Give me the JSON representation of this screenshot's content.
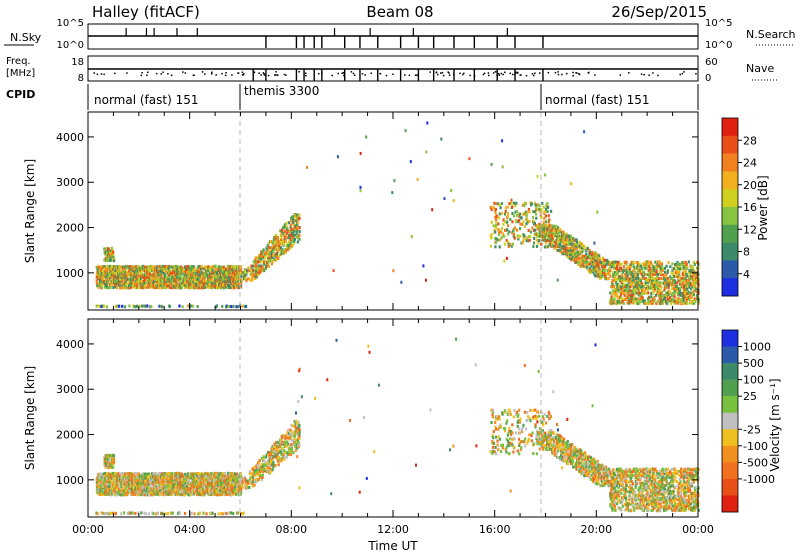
{
  "header": {
    "left": "Halley (fitACF)",
    "center": "Beam 08",
    "right": "26/Sep/2015"
  },
  "strips": {
    "nsky_label": "N.Sky",
    "nsky_ticks": [
      "10^5",
      "10^0"
    ],
    "nsearch_label": "N.Search",
    "nsearch_ticks": [
      "10^5",
      "10^0"
    ],
    "freq_label_1": "Freq.",
    "freq_label_2": "[MHz]",
    "freq_ticks": [
      "18",
      "8"
    ],
    "nave_label": "Nave",
    "nave_ticks": [
      "60",
      "0"
    ],
    "cpid_label": "CPID",
    "modes": [
      {
        "label": "normal (fast) 151",
        "start": 0
      },
      {
        "label": "themis 3300",
        "start": 6
      },
      {
        "label": "normal (fast) 151",
        "start": 18
      }
    ]
  },
  "chart_data": [
    {
      "type": "heatmap",
      "quantity": "Power",
      "ylabel": "Slant Range [km]",
      "xlabel": "",
      "xlim": [
        0,
        24
      ],
      "ylim": [
        180,
        4550
      ],
      "yticks": [
        "1000",
        "2000",
        "3000",
        "4000"
      ],
      "colorbar": {
        "label": "Power [dB]",
        "ticks": [
          "4",
          "8",
          "12",
          "16",
          "20",
          "24",
          "28"
        ],
        "colors": [
          "#1d2fe0",
          "#2a5aa8",
          "#3d8a6a",
          "#50a050",
          "#88c440",
          "#d0d020",
          "#f0b020",
          "#f08020",
          "#e85018",
          "#e02010"
        ]
      }
    },
    {
      "type": "heatmap",
      "quantity": "Velocity",
      "ylabel": "Slant Range [km]",
      "xlabel": "Time UT",
      "xlim": [
        0,
        24
      ],
      "ylim": [
        180,
        4550
      ],
      "yticks": [
        "1000",
        "2000",
        "3000",
        "4000"
      ],
      "xticks": [
        "00:00",
        "04:00",
        "08:00",
        "12:00",
        "16:00",
        "20:00",
        "00:00"
      ],
      "colorbar": {
        "label": "Velocity [m s⁻¹]",
        "ticks": [
          "1000",
          "500",
          "100",
          "25",
          "-25",
          "-100",
          "-500",
          "-1000"
        ],
        "colors": [
          "#1d2fe0",
          "#2a5aa8",
          "#3d8a6a",
          "#50a050",
          "#78c040",
          "#c0c0c0",
          "#f0c020",
          "#f09020",
          "#f07020",
          "#e85018",
          "#e02010"
        ]
      }
    }
  ],
  "scatter_regions": [
    {
      "t0": 0.3,
      "t1": 6.0,
      "r0": 700,
      "r1": 1200,
      "dens": 0.65
    },
    {
      "t0": 0.6,
      "t1": 1.0,
      "r0": 1300,
      "r1": 1600,
      "dens": 0.55
    },
    {
      "t0": 6.0,
      "t1": 8.3,
      "r0": 850,
      "r1": 2350,
      "dens": 0.35
    },
    {
      "t0": 0.2,
      "t1": 6.2,
      "r0": 280,
      "r1": 330,
      "dens": 0.25
    },
    {
      "t0": 15.8,
      "t1": 18.2,
      "r0": 1600,
      "r1": 2600,
      "dens": 0.12
    },
    {
      "t0": 17.6,
      "t1": 20.5,
      "r0": 900,
      "r1": 2100,
      "dens": 0.45
    },
    {
      "t0": 20.5,
      "t1": 24.0,
      "r0": 350,
      "r1": 1300,
      "dens": 0.35
    }
  ],
  "markers": {
    "times": [
      6,
      18
    ]
  }
}
